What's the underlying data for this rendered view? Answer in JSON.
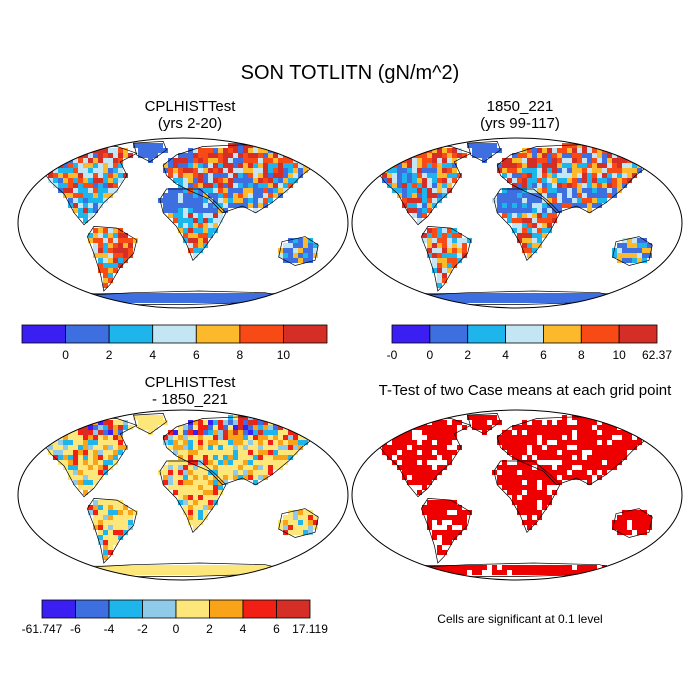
{
  "title": "SON TOTLITN (gN/m^2)",
  "panels": [
    {
      "id": "test",
      "title_lines": [
        "CPLHISTTest",
        "(yrs 2-20)"
      ]
    },
    {
      "id": "control",
      "title_lines": [
        "1850_221",
        "(yrs 99-117)"
      ]
    },
    {
      "id": "diff",
      "title_lines": [
        "CPLHISTTest",
        "- 1850_221"
      ]
    },
    {
      "id": "ttest",
      "title_lines": [
        "T-Test of two Case means at each grid point"
      ]
    }
  ],
  "colorbars": [
    {
      "id": "test-colorbar",
      "colors": [
        "#3b1ef2",
        "#3d6fe0",
        "#1eb4ec",
        "#c4e6f4",
        "#fbb92b",
        "#f84a14",
        "#d42e26"
      ],
      "labels": [
        "0",
        "2",
        "4",
        "6",
        "8",
        "10"
      ]
    },
    {
      "id": "control-colorbar",
      "colors": [
        "#3b1ef2",
        "#3d6fe0",
        "#1eb4ec",
        "#c4e6f4",
        "#fbb92b",
        "#f84a14",
        "#d42e26"
      ],
      "labels": [
        "-0",
        "0",
        "2",
        "4",
        "6",
        "8",
        "10",
        "62.37"
      ]
    },
    {
      "id": "diff-colorbar",
      "colors": [
        "#3b1ef2",
        "#3d6fe0",
        "#1eb4ec",
        "#8fcbe9",
        "#fde77a",
        "#f9a318",
        "#f21f14",
        "#d42e26"
      ],
      "labels": [
        "-61.747",
        "-6",
        "-4",
        "-2",
        "0",
        "2",
        "4",
        "6",
        "17.119"
      ]
    }
  ],
  "significance_note": "Cells are significant at 0.1 level",
  "colors": {
    "ocean": "#ffffff",
    "land_outline": "#000000",
    "significant": "#ee0000"
  }
}
